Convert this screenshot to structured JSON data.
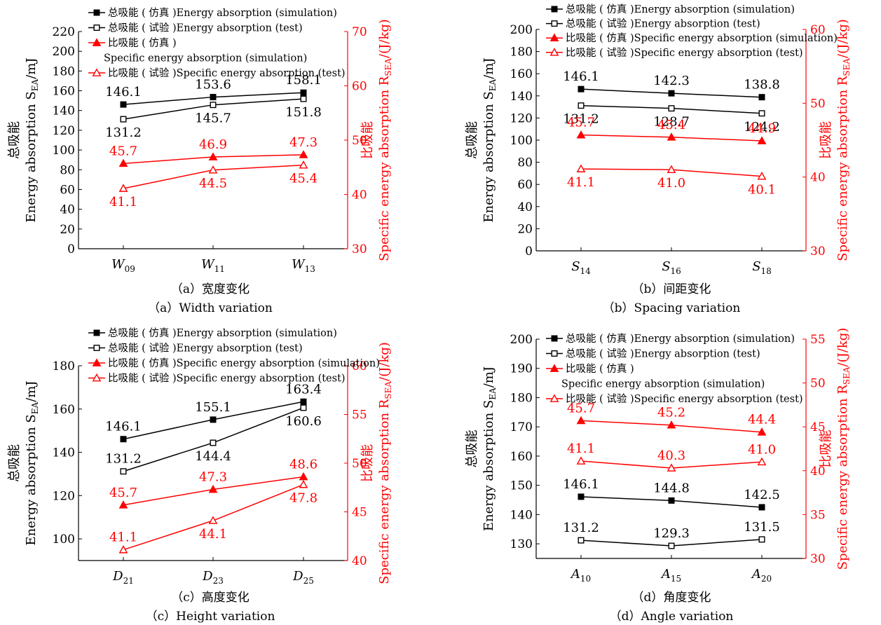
{
  "colors": {
    "total": "#000000",
    "specific": "#ff0000",
    "axis": "#000000",
    "secondary_axis": "#ff0000"
  },
  "chart_data": [
    {
      "type": "line",
      "categories": [
        "W09",
        "W11",
        "W13"
      ],
      "category_base": [
        "W",
        "W",
        "W"
      ],
      "category_sub": [
        "09",
        "11",
        "13"
      ],
      "left_axis": {
        "label_zh": "总吸能",
        "label_en": "Energy absorption S",
        "label_sub": "EA",
        "label_unit": "/mJ",
        "ylim": [
          0,
          220
        ],
        "ticks": [
          "0",
          "20",
          "40",
          "60",
          "80",
          "100",
          "120",
          "140",
          "160",
          "180",
          "200",
          "220"
        ]
      },
      "right_axis": {
        "label_zh": "比吸能",
        "label_en": "Specific energy absorption R",
        "label_sub": "SEA",
        "label_unit": "/(J/kg)",
        "ylim": [
          30,
          70
        ],
        "ticks": [
          "30",
          "40",
          "50",
          "60",
          "70"
        ]
      },
      "legend_entries": [
        "总吸能 ( 仿真 )Energy absorption (simulation)",
        "总吸能 ( 试验 )Energy absorption (test)",
        "比吸能 ( 仿真 )",
        "Specific energy absorption (simulation)",
        "比吸能 ( 试验 )Specific energy absorption (test)"
      ],
      "series": [
        {
          "name": "总吸能 ( 仿真 )Energy absorption (simulation)",
          "axis": "left",
          "marker": "square-filled",
          "color": "#000000",
          "values": [
            146.1,
            153.6,
            158.1
          ],
          "labels": [
            "146.1",
            "153.6",
            "158.1"
          ]
        },
        {
          "name": "总吸能 ( 试验 )Energy absorption (test)",
          "axis": "left",
          "marker": "square-open",
          "color": "#000000",
          "values": [
            131.2,
            145.7,
            151.8
          ],
          "labels": [
            "131.2",
            "145.7",
            "151.8"
          ]
        },
        {
          "name": "比吸能 ( 仿真 ) Specific energy absorption (simulation)",
          "axis": "right",
          "marker": "triangle-filled",
          "color": "#ff0000",
          "values": [
            45.7,
            46.9,
            47.3
          ],
          "labels": [
            "45.7",
            "46.9",
            "47.3"
          ]
        },
        {
          "name": "比吸能 ( 试验 )Specific energy absorption (test)",
          "axis": "right",
          "marker": "triangle-open",
          "color": "#ff0000",
          "values": [
            41.1,
            44.5,
            45.4
          ],
          "labels": [
            "41.1",
            "44.5",
            "45.4"
          ]
        }
      ],
      "caption_zh": "（a）宽度变化",
      "caption_en": "（a）Width variation"
    },
    {
      "type": "line",
      "categories": [
        "S14",
        "S16",
        "S18"
      ],
      "category_base": [
        "S",
        "S",
        "S"
      ],
      "category_sub": [
        "14",
        "16",
        "18"
      ],
      "left_axis": {
        "label_zh": "总吸能",
        "label_en": "Energy absorption S",
        "label_sub": "EA",
        "label_unit": "/mJ",
        "ylim": [
          0,
          200
        ],
        "ticks": [
          "0",
          "20",
          "40",
          "60",
          "80",
          "100",
          "120",
          "140",
          "160",
          "180",
          "200"
        ]
      },
      "right_axis": {
        "label_zh": "比吸能",
        "label_en": "Specific energy absorption R",
        "label_sub": "SEA",
        "label_unit": "/(J/kg)",
        "ylim": [
          30,
          60
        ],
        "ticks": [
          "30",
          "40",
          "50",
          "60"
        ]
      },
      "legend_entries": [
        "总吸能 ( 仿真 )Energy absorption (simulation)",
        "总吸能 ( 试验 )Energy absorption (test)",
        "比吸能 ( 仿真 )Specific energy absorption (simulation)",
        "比吸能 ( 试验 )Specific energy absorption (test)"
      ],
      "series": [
        {
          "name": "总吸能 ( 仿真 )Energy absorption (simulation)",
          "axis": "left",
          "marker": "square-filled",
          "color": "#000000",
          "values": [
            146.1,
            142.3,
            138.8
          ],
          "labels": [
            "146.1",
            "142.3",
            "138.8"
          ]
        },
        {
          "name": "总吸能 ( 试验 )Energy absorption (test)",
          "axis": "left",
          "marker": "square-open",
          "color": "#000000",
          "values": [
            131.2,
            128.7,
            124.2
          ],
          "labels": [
            "131.2",
            "128.7",
            "124.2"
          ]
        },
        {
          "name": "比吸能 ( 仿真 )Specific energy absorption (simulation)",
          "axis": "right",
          "marker": "triangle-filled",
          "color": "#ff0000",
          "values": [
            45.7,
            45.4,
            44.9
          ],
          "labels": [
            "45.7",
            "45.4",
            "44.9"
          ]
        },
        {
          "name": "比吸能 ( 试验 )Specific energy absorption (test)",
          "axis": "right",
          "marker": "triangle-open",
          "color": "#ff0000",
          "values": [
            41.1,
            41.0,
            40.1
          ],
          "labels": [
            "41.1",
            "41.0",
            "40.1"
          ]
        }
      ],
      "caption_zh": "（b）间距变化",
      "caption_en": "（b）Spacing variation"
    },
    {
      "type": "line",
      "categories": [
        "D21",
        "D23",
        "D25"
      ],
      "category_base": [
        "D",
        "D",
        "D"
      ],
      "category_sub": [
        "21",
        "23",
        "25"
      ],
      "left_axis": {
        "label_zh": "总吸能",
        "label_en": "Energy absorption S",
        "label_sub": "EA",
        "label_unit": "/mJ",
        "ylim": [
          90,
          180
        ],
        "ticks": [
          "100",
          "120",
          "140",
          "160",
          "180"
        ]
      },
      "right_axis": {
        "label_zh": "比吸能",
        "label_en": "Specific energy absorption R",
        "label_sub": "SEA",
        "label_unit": "/(J/kg)",
        "ylim": [
          40,
          60
        ],
        "ticks": [
          "40",
          "45",
          "50",
          "55",
          "60"
        ]
      },
      "legend_entries": [
        "总吸能 ( 仿真 )Energy absorption (simulation)",
        "总吸能 ( 试验 )Energy absorption (test)",
        "比吸能 ( 仿真 )Specific energy absorption (simulation)",
        "比吸能 ( 试验 )Specific energy absorption (test)"
      ],
      "series": [
        {
          "name": "总吸能 ( 仿真 )Energy absorption (simulation)",
          "axis": "left",
          "marker": "square-filled",
          "color": "#000000",
          "values": [
            146.1,
            155.1,
            163.4
          ],
          "labels": [
            "146.1",
            "155.1",
            "163.4"
          ]
        },
        {
          "name": "总吸能 ( 试验 )Energy absorption (test)",
          "axis": "left",
          "marker": "square-open",
          "color": "#000000",
          "values": [
            131.2,
            144.4,
            160.6
          ],
          "labels": [
            "131.2",
            "144.4",
            "160.6"
          ]
        },
        {
          "name": "比吸能 ( 仿真 )Specific energy absorption (simulation)",
          "axis": "right",
          "marker": "triangle-filled",
          "color": "#ff0000",
          "values": [
            45.7,
            47.3,
            48.6
          ],
          "labels": [
            "45.7",
            "47.3",
            "48.6"
          ]
        },
        {
          "name": "比吸能 ( 试验 )Specific energy absorption (test)",
          "axis": "right",
          "marker": "triangle-open",
          "color": "#ff0000",
          "values": [
            41.1,
            44.1,
            47.8
          ],
          "labels": [
            "41.1",
            "44.1",
            "47.8"
          ]
        }
      ],
      "caption_zh": "（c）高度变化",
      "caption_en": "（c）Height variation"
    },
    {
      "type": "line",
      "categories": [
        "A10",
        "A15",
        "A20"
      ],
      "category_base": [
        "A",
        "A",
        "A"
      ],
      "category_sub": [
        "10",
        "15",
        "20"
      ],
      "left_axis": {
        "label_zh": "总吸能",
        "label_en": "Energy absorption S",
        "label_sub": "EA",
        "label_unit": "/mJ",
        "ylim": [
          125,
          200
        ],
        "ticks": [
          "130",
          "140",
          "150",
          "160",
          "170",
          "180",
          "190",
          "200"
        ]
      },
      "right_axis": {
        "label_zh": "比吸能",
        "label_en": "Specific energy absorption R",
        "label_sub": "SEA",
        "label_unit": "/(J/kg)",
        "ylim": [
          30,
          55
        ],
        "ticks": [
          "30",
          "35",
          "40",
          "45",
          "50",
          "55"
        ]
      },
      "legend_entries": [
        "总吸能 ( 仿真 )Energy absorption (simulation)",
        "总吸能 ( 试验 )Energy absorption (test)",
        "比吸能 ( 仿真 )",
        "Specific energy absorption (simulation)",
        "比吸能 ( 试验 )Specific energy absorption (test)"
      ],
      "series": [
        {
          "name": "总吸能 ( 仿真 )Energy absorption (simulation)",
          "axis": "left",
          "marker": "square-filled",
          "color": "#000000",
          "values": [
            146.1,
            144.8,
            142.5
          ],
          "labels": [
            "146.1",
            "144.8",
            "142.5"
          ]
        },
        {
          "name": "总吸能 ( 试验 )Energy absorption (test)",
          "axis": "left",
          "marker": "square-open",
          "color": "#000000",
          "values": [
            131.2,
            129.3,
            131.5
          ],
          "labels": [
            "131.2",
            "129.3",
            "131.5"
          ]
        },
        {
          "name": "比吸能 ( 仿真 ) Specific energy absorption (simulation)",
          "axis": "right",
          "marker": "triangle-filled",
          "color": "#ff0000",
          "values": [
            45.7,
            45.2,
            44.4
          ],
          "labels": [
            "45.7",
            "45.2",
            "44.4"
          ]
        },
        {
          "name": "比吸能 ( 试验 )Specific energy absorption (test)",
          "axis": "right",
          "marker": "triangle-open",
          "color": "#ff0000",
          "values": [
            41.1,
            40.3,
            41.0
          ],
          "labels": [
            "41.1",
            "40.3",
            "41.0"
          ]
        }
      ],
      "caption_zh": "（d）角度变化",
      "caption_en": "（d）Angle variation"
    }
  ]
}
